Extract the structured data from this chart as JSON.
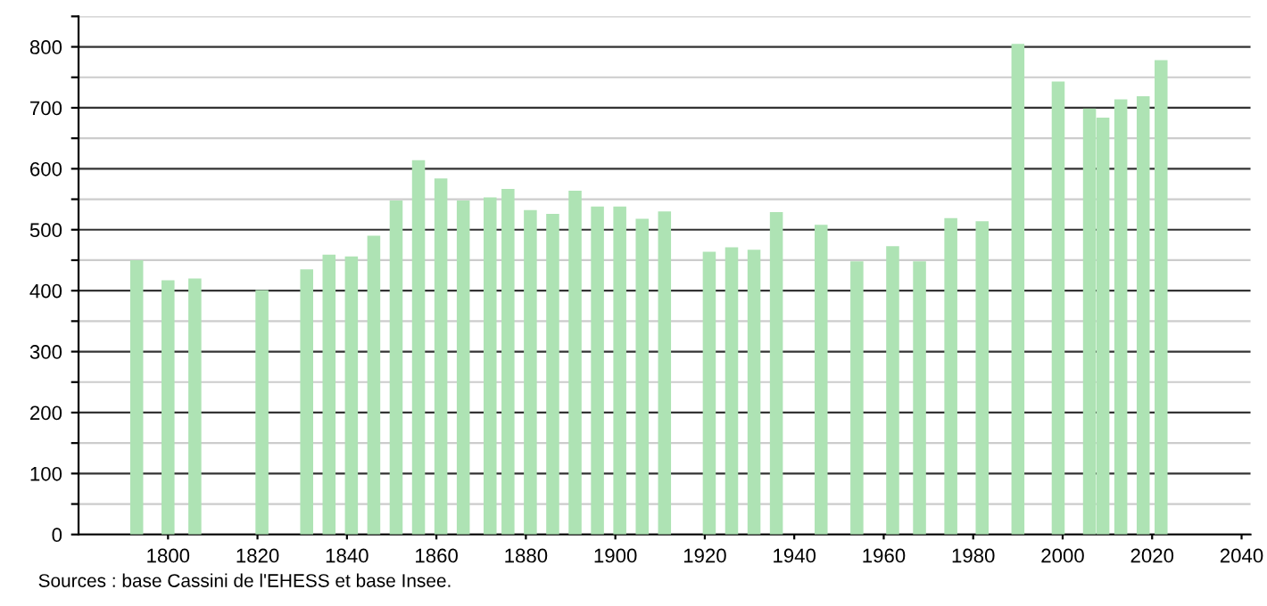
{
  "chart_data": {
    "type": "bar",
    "x": [
      1793,
      1800,
      1806,
      1821,
      1831,
      1836,
      1841,
      1846,
      1851,
      1856,
      1861,
      1866,
      1872,
      1876,
      1881,
      1886,
      1891,
      1896,
      1901,
      1906,
      1911,
      1921,
      1926,
      1931,
      1936,
      1946,
      1954,
      1962,
      1968,
      1975,
      1982,
      1990,
      1999,
      2006,
      2009,
      2013,
      2018,
      2022
    ],
    "values": [
      450,
      417,
      420,
      401,
      435,
      459,
      456,
      490,
      548,
      614,
      584,
      548,
      553,
      567,
      532,
      526,
      564,
      538,
      538,
      518,
      530,
      464,
      471,
      467,
      529,
      508,
      448,
      473,
      448,
      519,
      514,
      805,
      743,
      699,
      684,
      714,
      719,
      778
    ],
    "color": "#aee3b4",
    "xlim": [
      1780,
      2042
    ],
    "xticks": [
      1800,
      1820,
      1840,
      1860,
      1880,
      1900,
      1920,
      1940,
      1960,
      1980,
      2000,
      2020,
      2040
    ],
    "ylim": [
      0,
      850
    ],
    "yticks": [
      0,
      {
        "value": 50,
        "label": null
      },
      100,
      {
        "value": 150,
        "label": null
      },
      200,
      {
        "value": 250,
        "label": null
      },
      300,
      {
        "value": 350,
        "label": null
      },
      400,
      {
        "value": 450,
        "label": null
      },
      500,
      {
        "value": 550,
        "label": null
      },
      600,
      {
        "value": 650,
        "label": null
      },
      700,
      {
        "value": 750,
        "label": null
      },
      800,
      {
        "value": 850,
        "label": null
      }
    ],
    "grid": "y",
    "annotations": [
      "Sources : base Cassini de l'EHESS et base Insee."
    ]
  }
}
